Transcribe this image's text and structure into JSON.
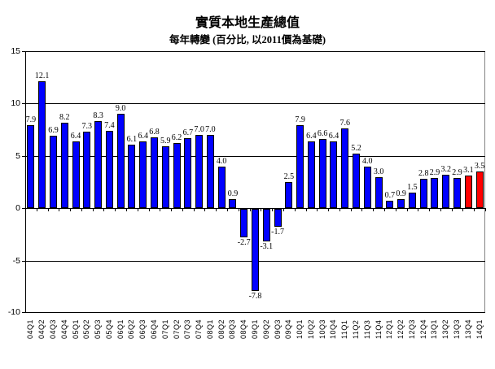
{
  "chart": {
    "title": "實質本地生產總值",
    "subtitle": "每年轉變 (百分比, 以2011價為基礎)"
  },
  "chart_data": {
    "type": "bar",
    "title": "實質本地生產總值",
    "subtitle": "每年轉變 (百分比, 以2011價為基礎)",
    "categories": [
      "04Q1",
      "04Q2",
      "04Q3",
      "04Q4",
      "05Q1",
      "05Q2",
      "05Q3",
      "05Q4",
      "06Q1",
      "06Q2",
      "06Q3",
      "06Q4",
      "07Q1",
      "07Q2",
      "07Q3",
      "07Q4",
      "08Q1",
      "08Q2",
      "08Q3",
      "08Q4",
      "09Q1",
      "09Q2",
      "09Q3",
      "09Q4",
      "10Q1",
      "10Q2",
      "10Q3",
      "10Q4",
      "11Q1",
      "11Q2",
      "11Q3",
      "11Q4",
      "12Q1",
      "12Q2",
      "12Q3",
      "12Q4",
      "13Q1",
      "13Q2",
      "13Q3",
      "13Q4",
      "14Q1"
    ],
    "values": [
      7.9,
      12.1,
      6.9,
      8.2,
      6.4,
      7.3,
      8.3,
      7.4,
      9.0,
      6.1,
      6.4,
      6.8,
      5.9,
      6.2,
      6.7,
      7.0,
      7.0,
      4.0,
      0.9,
      -2.7,
      -7.8,
      -3.1,
      -1.7,
      2.5,
      7.9,
      6.4,
      6.6,
      6.4,
      7.6,
      5.2,
      4.0,
      3.0,
      0.7,
      0.9,
      1.5,
      2.8,
      2.9,
      3.2,
      2.9,
      3.1,
      3.5
    ],
    "highlight_indices": [
      39,
      40
    ],
    "bar_color": "#0000FF",
    "highlight_color": "#FF0000",
    "bar_border_color": "#000000",
    "gridline_color": "#000000",
    "plot_border_color": "#848484",
    "ylim": [
      -10,
      15
    ],
    "yticks": [
      15,
      10,
      5,
      0,
      -5,
      -10
    ],
    "grid": true,
    "legend": false,
    "xlabel": "",
    "ylabel": ""
  }
}
